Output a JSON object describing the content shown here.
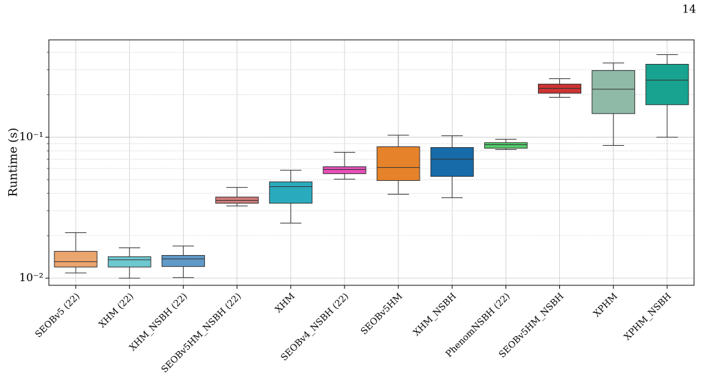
{
  "page_number": "14",
  "chart_data": {
    "type": "box",
    "ylabel": "Runtime (s)",
    "yscale": "log",
    "grid": true,
    "categories": [
      "SEOBv5 (22)",
      "XHM (22)",
      "XHM_NSBH (22)",
      "SEOBv5HM_NSBH (22)",
      "XHM",
      "SEOBv4_NSBH (22)",
      "SEOBv5HM",
      "XHM_NSBH",
      "PhenomNSBH (22)",
      "SEOBv5HM_NSBH",
      "XPHM",
      "XPHM_NSBH"
    ],
    "colors": [
      "#eba56e",
      "#6ec8cf",
      "#5f9ac8",
      "#cf7a7a",
      "#2aaabd",
      "#e64fb8",
      "#e6832a",
      "#166ba8",
      "#57cc6d",
      "#cc3333",
      "#8fbaa8",
      "#17a38f"
    ],
    "boxes": [
      {
        "whislo": 0.0109,
        "q1": 0.012,
        "med": 0.0131,
        "q3": 0.0155,
        "whishi": 0.021
      },
      {
        "whislo": 0.01,
        "q1": 0.012,
        "med": 0.0135,
        "q3": 0.0142,
        "whishi": 0.0164
      },
      {
        "whislo": 0.0101,
        "q1": 0.0121,
        "med": 0.0137,
        "q3": 0.0145,
        "whishi": 0.0169
      },
      {
        "whislo": 0.0325,
        "q1": 0.034,
        "med": 0.0356,
        "q3": 0.0376,
        "whishi": 0.044
      },
      {
        "whislo": 0.0246,
        "q1": 0.034,
        "med": 0.0446,
        "q3": 0.0482,
        "whishi": 0.0583
      },
      {
        "whislo": 0.0504,
        "q1": 0.0551,
        "med": 0.059,
        "q3": 0.0617,
        "whishi": 0.0781
      },
      {
        "whislo": 0.0394,
        "q1": 0.0493,
        "med": 0.061,
        "q3": 0.0855,
        "whishi": 0.1034
      },
      {
        "whislo": 0.0372,
        "q1": 0.0527,
        "med": 0.0698,
        "q3": 0.0845,
        "whishi": 0.1023
      },
      {
        "whislo": 0.0817,
        "q1": 0.0835,
        "med": 0.0884,
        "q3": 0.0914,
        "whishi": 0.0967
      },
      {
        "whislo": 0.192,
        "q1": 0.205,
        "med": 0.222,
        "q3": 0.238,
        "whishi": 0.26
      },
      {
        "whislo": 0.0874,
        "q1": 0.147,
        "med": 0.219,
        "q3": 0.297,
        "whishi": 0.336
      },
      {
        "whislo": 0.1,
        "q1": 0.17,
        "med": 0.254,
        "q3": 0.329,
        "whishi": 0.385
      }
    ],
    "ylim": [
      0.0089,
      0.49
    ],
    "yticks": [
      {
        "value": 0.01,
        "label": "10⁻²"
      },
      {
        "value": 0.1,
        "label": "10⁻¹"
      }
    ],
    "yminorticks": [
      0.02,
      0.03,
      0.04,
      0.05,
      0.06,
      0.07,
      0.08,
      0.09,
      0.2,
      0.3,
      0.4
    ]
  }
}
